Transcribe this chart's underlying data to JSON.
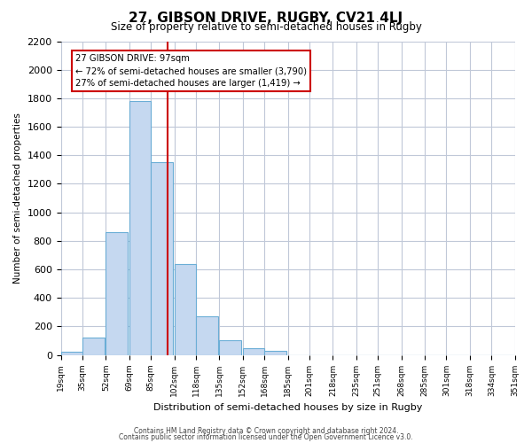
{
  "title": "27, GIBSON DRIVE, RUGBY, CV21 4LJ",
  "subtitle": "Size of property relative to semi-detached houses in Rugby",
  "xlabel": "Distribution of semi-detached houses by size in Rugby",
  "ylabel": "Number of semi-detached properties",
  "footer_lines": [
    "Contains HM Land Registry data © Crown copyright and database right 2024.",
    "Contains public sector information licensed under the Open Government Licence v3.0."
  ],
  "bar_left_edges": [
    19,
    35,
    52,
    69,
    85,
    102,
    118,
    135,
    152,
    168,
    185,
    201,
    218,
    235,
    251,
    268,
    285,
    301,
    318,
    334
  ],
  "bar_heights": [
    20,
    120,
    860,
    1780,
    1350,
    640,
    270,
    100,
    50,
    30,
    0,
    0,
    0,
    0,
    0,
    0,
    0,
    0,
    0,
    0
  ],
  "bin_width": 16,
  "bar_color": "#c5d8f0",
  "bar_edge_color": "#6baed6",
  "x_tick_labels": [
    "19sqm",
    "35sqm",
    "52sqm",
    "69sqm",
    "85sqm",
    "102sqm",
    "118sqm",
    "135sqm",
    "152sqm",
    "168sqm",
    "185sqm",
    "201sqm",
    "218sqm",
    "235sqm",
    "251sqm",
    "268sqm",
    "285sqm",
    "301sqm",
    "318sqm",
    "334sqm",
    "351sqm"
  ],
  "x_tick_positions": [
    19,
    35,
    52,
    69,
    85,
    102,
    118,
    135,
    152,
    168,
    185,
    201,
    218,
    235,
    251,
    268,
    285,
    301,
    318,
    334,
    351
  ],
  "ylim": [
    0,
    2200
  ],
  "yticks": [
    0,
    200,
    400,
    600,
    800,
    1000,
    1200,
    1400,
    1600,
    1800,
    2000,
    2200
  ],
  "vline_x": 97,
  "vline_color": "#cc0000",
  "annotation_title": "27 GIBSON DRIVE: 97sqm",
  "annotation_line1": "← 72% of semi-detached houses are smaller (3,790)",
  "annotation_line2": "27% of semi-detached houses are larger (1,419) →",
  "annotation_box_edge": "#cc0000",
  "background_color": "#ffffff",
  "grid_color": "#c0c8d8"
}
